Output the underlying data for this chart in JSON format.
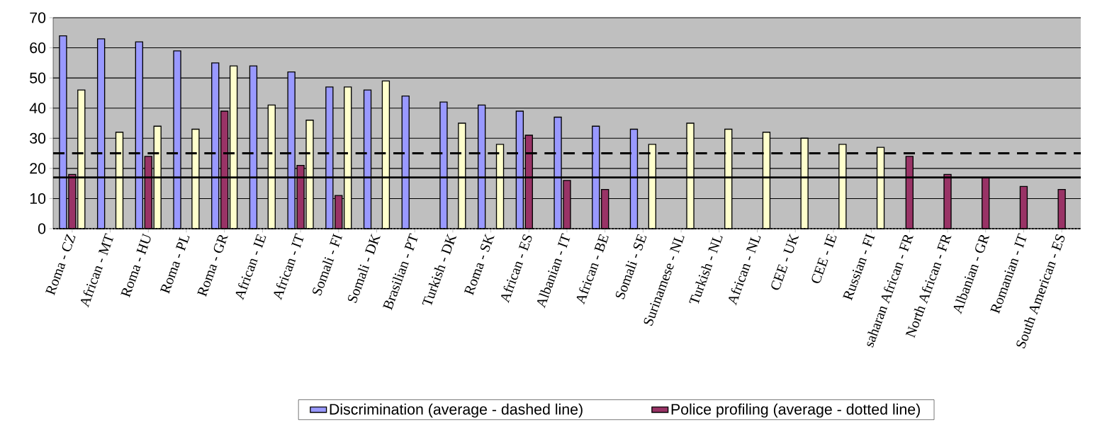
{
  "chart_data": {
    "type": "bar",
    "categories": [
      "Roma - CZ",
      "African - MT",
      "Roma - HU",
      "Roma - PL",
      "Roma - GR",
      "African - IE",
      "African - IT",
      "Somali - FI",
      "Somali - DK",
      "Brasilian - PT",
      "Turkish - DK",
      "Roma - SK",
      "African - ES",
      "Albanian - IT",
      "African - BE",
      "Somali - SE",
      "Surinamese - NL",
      "Turkish - NL",
      "African - NL",
      "CEE - UK",
      "CEE - IE",
      "Russian - FI",
      "saharan African - FR",
      "North African - FR",
      "Albanian - GR",
      "Romanian - IT",
      "South American - ES"
    ],
    "series": [
      {
        "name": "Discrimination (average -  dashed line)",
        "color": "#9999ff",
        "values": [
          64,
          63,
          62,
          59,
          55,
          54,
          52,
          47,
          46,
          44,
          42,
          41,
          39,
          37,
          34,
          33,
          null,
          null,
          null,
          null,
          null,
          null,
          null,
          null,
          null,
          null,
          null
        ]
      },
      {
        "name": "Police profiling (average -  dotted line)",
        "color": "#993366",
        "values": [
          18,
          null,
          24,
          null,
          39,
          null,
          21,
          11,
          null,
          null,
          null,
          null,
          31,
          16,
          13,
          null,
          null,
          null,
          null,
          null,
          null,
          null,
          24,
          18,
          17,
          14,
          13
        ]
      },
      {
        "color": "#ffffcc",
        "values": [
          46,
          32,
          34,
          33,
          54,
          41,
          36,
          47,
          49,
          null,
          35,
          28,
          null,
          null,
          null,
          28,
          35,
          33,
          32,
          30,
          28,
          27,
          null,
          null,
          null,
          null,
          null
        ]
      }
    ],
    "ylim": [
      0,
      70
    ],
    "yticks": [
      0,
      10,
      20,
      30,
      40,
      50,
      60,
      70
    ],
    "grid": "y",
    "legend": "bottom",
    "ref_lines": [
      {
        "axis": "y",
        "value": 25,
        "line_style": "dashed",
        "color": "#000000"
      },
      {
        "axis": "y",
        "value": 17,
        "line_style": "solid",
        "color": "#000000"
      },
      {
        "axis": "y",
        "value": 0,
        "line_style": "dotted",
        "color": "#000000"
      }
    ]
  }
}
